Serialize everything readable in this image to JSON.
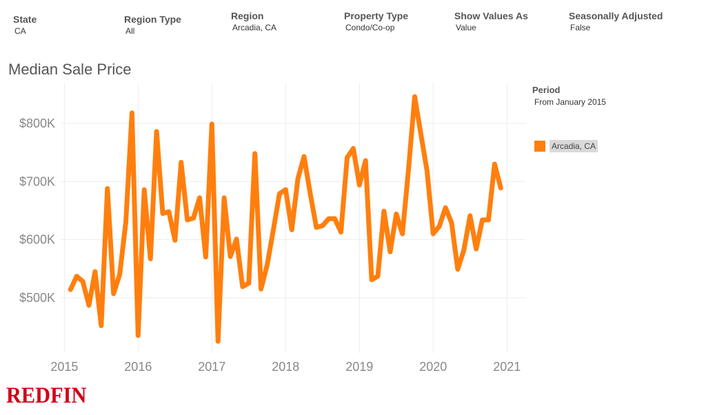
{
  "filters": [
    {
      "label": "State",
      "value": "CA"
    },
    {
      "label": "Region Type",
      "value": "All"
    },
    {
      "label": "Region",
      "value": "Arcadia, CA"
    },
    {
      "label": "Property Type",
      "value": "Condo/Co-op"
    },
    {
      "label": "Show Values As",
      "value": "Value"
    },
    {
      "label": "Seasonally Adjusted",
      "value": "False"
    }
  ],
  "legend": {
    "title": "Period",
    "subtitle": "From January 2015",
    "entries": [
      {
        "label": "Arcadia, CA",
        "color": "#ff7f0e"
      }
    ]
  },
  "logo": "REDFIN",
  "chart_data": {
    "type": "line",
    "title": "Median Sale Price",
    "xlabel": "",
    "ylabel": "",
    "x_ticks": [
      "2015",
      "2016",
      "2017",
      "2018",
      "2019",
      "2020",
      "2021"
    ],
    "y_ticks": [
      {
        "value": 500000,
        "label": "$500K"
      },
      {
        "value": 600000,
        "label": "$600K"
      },
      {
        "value": 700000,
        "label": "$700K"
      },
      {
        "value": 800000,
        "label": "$800K"
      }
    ],
    "ylim": [
      405000,
      870000
    ],
    "xlim": [
      2014.95,
      2021.25
    ],
    "grid": true,
    "legend_position": "right",
    "series": [
      {
        "name": "Arcadia, CA",
        "color": "#ff7f0e",
        "points": [
          [
            "2015-02",
            514000
          ],
          [
            "2015-03",
            537000
          ],
          [
            "2015-04",
            528000
          ],
          [
            "2015-05",
            487000
          ],
          [
            "2015-06",
            545000
          ],
          [
            "2015-07",
            452000
          ],
          [
            "2015-08",
            688000
          ],
          [
            "2015-09",
            507000
          ],
          [
            "2015-10",
            540000
          ],
          [
            "2015-11",
            630000
          ],
          [
            "2015-12",
            818000
          ],
          [
            "2016-01",
            435000
          ],
          [
            "2016-02",
            686000
          ],
          [
            "2016-03",
            567000
          ],
          [
            "2016-04",
            786000
          ],
          [
            "2016-05",
            645000
          ],
          [
            "2016-06",
            648000
          ],
          [
            "2016-07",
            599000
          ],
          [
            "2016-08",
            733000
          ],
          [
            "2016-09",
            634000
          ],
          [
            "2016-10",
            637000
          ],
          [
            "2016-11",
            672000
          ],
          [
            "2016-12",
            570000
          ],
          [
            "2017-01",
            799000
          ],
          [
            "2017-02",
            425000
          ],
          [
            "2017-03",
            672000
          ],
          [
            "2017-04",
            571000
          ],
          [
            "2017-05",
            601000
          ],
          [
            "2017-06",
            519000
          ],
          [
            "2017-07",
            525000
          ],
          [
            "2017-08",
            748000
          ],
          [
            "2017-09",
            515000
          ],
          [
            "2017-10",
            557000
          ],
          [
            "2017-11",
            617000
          ],
          [
            "2017-12",
            679000
          ],
          [
            "2018-01",
            686000
          ],
          [
            "2018-02",
            617000
          ],
          [
            "2018-03",
            705000
          ],
          [
            "2018-04",
            743000
          ],
          [
            "2018-05",
            679000
          ],
          [
            "2018-06",
            621000
          ],
          [
            "2018-07",
            624000
          ],
          [
            "2018-08",
            636000
          ],
          [
            "2018-09",
            636000
          ],
          [
            "2018-10",
            613000
          ],
          [
            "2018-11",
            741000
          ],
          [
            "2018-12",
            757000
          ],
          [
            "2019-01",
            694000
          ],
          [
            "2019-02",
            736000
          ],
          [
            "2019-03",
            531000
          ],
          [
            "2019-04",
            537000
          ],
          [
            "2019-05",
            649000
          ],
          [
            "2019-06",
            579000
          ],
          [
            "2019-07",
            644000
          ],
          [
            "2019-08",
            610000
          ],
          [
            "2019-09",
            722000
          ],
          [
            "2019-10",
            846000
          ],
          [
            "2019-11",
            782000
          ],
          [
            "2019-12",
            718000
          ],
          [
            "2020-01",
            610000
          ],
          [
            "2020-02",
            623000
          ],
          [
            "2020-03",
            655000
          ],
          [
            "2020-04",
            629000
          ],
          [
            "2020-05",
            549000
          ],
          [
            "2020-06",
            582000
          ],
          [
            "2020-07",
            641000
          ],
          [
            "2020-08",
            584000
          ],
          [
            "2020-09",
            634000
          ],
          [
            "2020-10",
            634000
          ],
          [
            "2020-11",
            730000
          ],
          [
            "2020-12",
            689000
          ]
        ]
      }
    ]
  }
}
